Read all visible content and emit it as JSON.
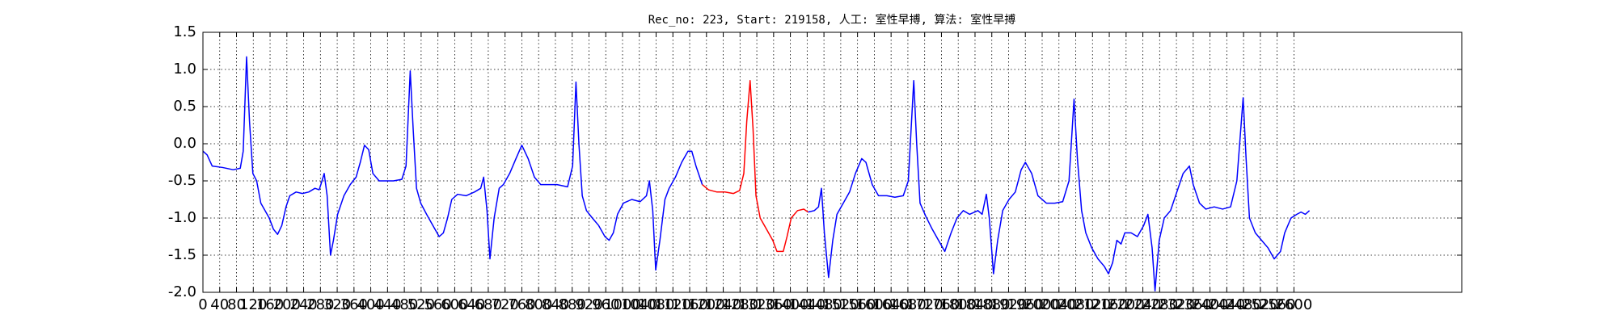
{
  "chart_data": {
    "type": "line",
    "title": "Rec_no: 223, Start: 219158, 人工: 室性早搏, 算法: 室性早搏",
    "x": [
      0,
      10,
      22,
      47,
      72,
      89,
      96,
      104,
      111,
      119,
      128,
      138,
      148,
      158,
      168,
      178,
      188,
      198,
      207,
      222,
      237,
      252,
      267,
      277,
      281,
      289,
      296,
      304,
      311,
      321,
      336,
      351,
      365,
      375,
      385,
      395,
      405,
      420,
      435,
      454,
      474,
      484,
      494,
      501,
      509,
      519,
      533,
      548,
      563,
      573,
      583,
      593,
      607,
      627,
      647,
      662,
      669,
      677,
      684,
      694,
      706,
      716,
      731,
      746,
      760,
      775,
      790,
      805,
      825,
      844,
      869,
      881,
      889,
      896,
      904,
      914,
      928,
      943,
      958,
      968,
      978,
      988,
      1002,
      1022,
      1042,
      1057,
      1064,
      1072,
      1079,
      1089,
      1101,
      1111,
      1126,
      1141,
      1156,
      1165,
      1175,
      1190,
      1205,
      1225,
      1244,
      1264,
      1279,
      1289,
      1296,
      1304,
      1311,
      1318,
      1328,
      1343,
      1358,
      1368,
      1383,
      1392,
      1402,
      1417,
      1432,
      1442,
      1457,
      1467,
      1474,
      1481,
      1491,
      1501,
      1511,
      1526,
      1541,
      1555,
      1570,
      1580,
      1595,
      1610,
      1630,
      1649,
      1669,
      1681,
      1694,
      1701,
      1709,
      1723,
      1738,
      1753,
      1768,
      1783,
      1797,
      1812,
      1827,
      1847,
      1857,
      1867,
      1874,
      1884,
      1894,
      1906,
      1921,
      1936,
      1950,
      1960,
      1975,
      1990,
      2010,
      2030,
      2049,
      2064,
      2076,
      2084,
      2094,
      2104,
      2118,
      2133,
      2148,
      2158,
      2168,
      2178,
      2188,
      2197,
      2212,
      2227,
      2242,
      2252,
      2262,
      2269,
      2279,
      2291,
      2306,
      2321,
      2336,
      2351,
      2360,
      2375,
      2390,
      2410,
      2430,
      2449,
      2464,
      2479,
      2486,
      2494,
      2508,
      2523,
      2538,
      2553,
      2568,
      2578,
      2593,
      2607,
      2617,
      2627,
      2637
    ],
    "series": [
      {
        "color": "#0000ff",
        "values": [
          -0.1,
          -0.15,
          -0.3,
          -0.32,
          -0.35,
          -0.33,
          -0.1,
          1.17,
          0.3,
          -0.4,
          -0.5,
          -0.8,
          -0.9,
          -1.0,
          -1.15,
          -1.22,
          -1.1,
          -0.85,
          -0.7,
          -0.65,
          -0.67,
          -0.65,
          -0.6,
          -0.62,
          -0.55,
          -0.4,
          -0.7,
          -1.5,
          -1.3,
          -0.95,
          -0.7,
          -0.55,
          -0.45,
          -0.25,
          -0.02,
          -0.08,
          -0.4,
          -0.5,
          -0.5,
          -0.5,
          -0.48,
          -0.3,
          0.98,
          0.2,
          -0.6,
          -0.8,
          -0.95,
          -1.1,
          -1.25,
          -1.2,
          -1.0,
          -0.75,
          -0.68,
          -0.7,
          -0.65,
          -0.6,
          -0.45,
          -0.9,
          -1.55,
          -1.0,
          -0.6,
          -0.55,
          -0.4,
          -0.2,
          -0.02,
          -0.2,
          -0.45,
          -0.55,
          -0.55,
          -0.55,
          -0.58,
          -0.3,
          0.83,
          0.0,
          -0.7,
          -0.9,
          -1.0,
          -1.1,
          -1.25,
          -1.3,
          -1.2,
          -0.95,
          -0.8,
          -0.75,
          -0.78,
          -0.7,
          -0.5,
          -0.9,
          -1.7,
          -1.3,
          -0.75,
          -0.6,
          -0.45,
          -0.25,
          -0.1,
          -0.1,
          -0.3,
          -0.55,
          null,
          null,
          null,
          null,
          null,
          null,
          null,
          null,
          null,
          null,
          null,
          null,
          null,
          null,
          null,
          null,
          null,
          null,
          null,
          -0.92,
          -0.9,
          -0.85,
          -0.6,
          -1.2,
          -1.8,
          -1.3,
          -0.95,
          -0.8,
          -0.65,
          -0.4,
          -0.2,
          -0.25,
          -0.55,
          -0.7,
          -0.7,
          -0.72,
          -0.7,
          -0.5,
          0.85,
          0.0,
          -0.8,
          -0.98,
          -1.15,
          -1.3,
          -1.45,
          -1.2,
          -1.0,
          -0.9,
          -0.95,
          -0.9,
          -0.95,
          -0.68,
          -1.0,
          -1.75,
          -1.3,
          -0.9,
          -0.75,
          -0.65,
          -0.35,
          -0.25,
          -0.4,
          -0.7,
          -0.8,
          -0.8,
          -0.78,
          -0.5,
          0.6,
          -0.2,
          -0.9,
          -1.2,
          -1.4,
          -1.55,
          -1.65,
          -1.75,
          -1.6,
          -1.3,
          -1.35,
          -1.2,
          -1.2,
          -1.25,
          -1.1,
          -0.95,
          -1.4,
          -1.98,
          -1.3,
          -1.0,
          -0.9,
          -0.65,
          -0.4,
          -0.3,
          -0.55,
          -0.8,
          -0.88,
          -0.85,
          -0.88,
          -0.85,
          -0.5,
          0.62,
          -0.2,
          -1.0,
          -1.2,
          -1.3,
          -1.4,
          -1.55,
          -1.45,
          -1.2,
          -1.0,
          -0.95,
          -0.92,
          -0.95,
          -0.9
        ]
      },
      {
        "color": "#ff0000",
        "values": [
          null,
          null,
          null,
          null,
          null,
          null,
          null,
          null,
          null,
          null,
          null,
          null,
          null,
          null,
          null,
          null,
          null,
          null,
          null,
          null,
          null,
          null,
          null,
          null,
          null,
          null,
          null,
          null,
          null,
          null,
          null,
          null,
          null,
          null,
          null,
          null,
          null,
          null,
          null,
          null,
          null,
          null,
          null,
          null,
          null,
          null,
          null,
          null,
          null,
          null,
          null,
          null,
          null,
          null,
          null,
          null,
          null,
          null,
          null,
          null,
          null,
          null,
          null,
          null,
          null,
          null,
          null,
          null,
          null,
          null,
          null,
          null,
          null,
          null,
          null,
          null,
          null,
          null,
          null,
          null,
          null,
          null,
          null,
          null,
          null,
          null,
          null,
          null,
          null,
          null,
          null,
          null,
          null,
          null,
          null,
          null,
          null,
          -0.55,
          -0.62,
          -0.65,
          -0.65,
          -0.67,
          -0.63,
          -0.4,
          0.3,
          0.85,
          0.2,
          -0.7,
          -1.0,
          -1.15,
          -1.3,
          -1.45,
          -1.45,
          -1.25,
          -1.0,
          -0.9,
          -0.88,
          -0.92,
          null,
          null,
          null,
          null,
          null,
          null,
          null,
          null,
          null,
          null,
          null,
          null,
          null,
          null,
          null,
          null,
          null,
          null,
          null,
          null,
          null,
          null,
          null,
          null,
          null,
          null,
          null,
          null,
          null,
          null,
          null,
          null,
          null,
          null,
          null,
          null,
          null,
          null,
          null,
          null,
          null,
          null,
          null,
          null,
          null,
          null,
          null,
          null,
          null,
          null,
          null,
          null,
          null,
          null,
          null,
          null,
          null,
          null,
          null,
          null,
          null,
          null,
          null,
          null,
          null,
          null,
          null,
          null,
          null,
          null,
          null,
          null,
          null,
          null,
          null,
          null,
          null,
          null,
          null,
          null,
          null,
          null,
          null,
          null,
          null,
          null,
          null,
          null,
          null,
          null,
          null
        ]
      }
    ],
    "xlim": [
      0,
      3000
    ],
    "xticks": [
      0,
      40,
      80,
      120,
      160,
      200,
      240,
      280,
      320,
      360,
      400,
      440,
      480,
      520,
      560,
      600,
      640,
      680,
      720,
      760,
      800,
      840,
      880,
      920,
      960,
      1000,
      1040,
      1080,
      1120,
      1160,
      1200,
      1240,
      1280,
      1320,
      1360,
      1400,
      1440,
      1480,
      1520,
      1560,
      1600,
      1640,
      1680,
      1720,
      1760,
      1800,
      1840,
      1880,
      1920,
      1960,
      2000,
      2040,
      2080,
      2120,
      2160,
      2200,
      2240,
      2280,
      2320,
      2360,
      2400,
      2440,
      2480,
      2520,
      2560,
      2600
    ],
    "ylim": [
      -2.0,
      1.5
    ],
    "yticks": [
      {
        "value": -2.0,
        "label": "-2.0"
      },
      -1.5,
      {
        "value": -1.0,
        "label": "-1.0"
      },
      -0.5,
      {
        "value": 0.0,
        "label": "0.0"
      },
      0.5,
      {
        "value": 1.0,
        "label": "1.0"
      },
      1.5
    ],
    "grid": true
  }
}
